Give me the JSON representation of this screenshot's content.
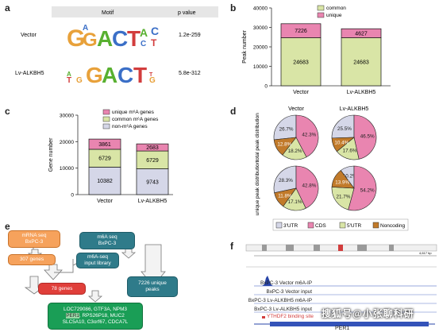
{
  "panels": {
    "a": "a",
    "b": "b",
    "c": "c",
    "d": "d",
    "e": "e",
    "f": "f"
  },
  "motif": {
    "header_motif": "Motif",
    "header_pvalue": "p value",
    "rows": [
      {
        "label": "Vector",
        "pvalue": "1.2e-259"
      },
      {
        "label": "Lv-ALKBH5",
        "pvalue": "5.8e-312"
      }
    ]
  },
  "chart_data": [
    {
      "type": "bar",
      "panel": "b",
      "ylabel": "Peak number",
      "ylim": [
        0,
        40000
      ],
      "yticks": [
        0,
        10000,
        20000,
        30000,
        40000
      ],
      "categories": [
        "Vector",
        "Lv-ALKBH5"
      ],
      "legend_position": "top-right",
      "series": [
        {
          "name": "common",
          "color": "#d9e5a6",
          "values": [
            24683,
            24683
          ]
        },
        {
          "name": "unique",
          "color": "#e985b0",
          "values": [
            7226,
            4627
          ]
        }
      ]
    },
    {
      "type": "bar",
      "panel": "c",
      "ylabel": "Gene number",
      "ylim": [
        0,
        30000
      ],
      "yticks": [
        0,
        10000,
        20000,
        30000
      ],
      "categories": [
        "Vector",
        "Lv-ALKBH5"
      ],
      "legend_position": "top-right",
      "series": [
        {
          "name": "non-m⁶A genes",
          "color": "#d5d7e8",
          "values": [
            10382,
            9743
          ]
        },
        {
          "name": "common m⁶A genes",
          "color": "#d9e5a6",
          "values": [
            6729,
            6729
          ]
        },
        {
          "name": "unique m⁶A genes",
          "color": "#e985b0",
          "values": [
            3861,
            2683
          ]
        }
      ]
    },
    {
      "type": "pie",
      "panel": "d",
      "row_labels": [
        "total peak distribution",
        "unique peak distribution"
      ],
      "col_labels": [
        "Vector",
        "Lv-ALKBH5"
      ],
      "categories": [
        "3'UTR",
        "CDS",
        "5'UTR",
        "Noncoding"
      ],
      "colors": [
        "#d5d7e8",
        "#e985b0",
        "#d9e5a6",
        "#c17a2a"
      ],
      "pies": [
        {
          "row": 0,
          "col": 0,
          "values": [
            26.7,
            42.3,
            18.2,
            12.8
          ],
          "labels": [
            "26.7%",
            "42.3%",
            "18.2%",
            "12.8%"
          ]
        },
        {
          "row": 0,
          "col": 1,
          "values": [
            25.5,
            46.5,
            17.6,
            10.4
          ],
          "labels": [
            "25.5%",
            "46.5%",
            "17.6%",
            "10.4%"
          ]
        },
        {
          "row": 1,
          "col": 0,
          "values": [
            28.3,
            42.8,
            17.1,
            11.8
          ],
          "labels": [
            "28.3%",
            "42.8%",
            "17.1%",
            "11.8%"
          ]
        },
        {
          "row": 1,
          "col": 1,
          "values": [
            10.2,
            54.2,
            21.7,
            13.9
          ],
          "labels": [
            "10.2%",
            "54.2%",
            "21.7%",
            "13.9%"
          ]
        }
      ]
    }
  ],
  "flow": {
    "mrna_seq": "mRNA seq\nBxPC-3",
    "m6a_seq": "m6A seq\nBxPC-3",
    "genes_307": "307 genes",
    "m6a_input": "m6A-seq\ninput library",
    "genes_78": "78 genes",
    "unique_peaks": "7226 unique\npeaks",
    "final_genes_1": "LOC729086, GTF3A, NPM3",
    "final_genes_2_a": "PER1",
    "final_genes_2_b": ", RPS26P18, MUC2",
    "final_genes_3": "SLC5A10, C3orf67, CDCA7L"
  },
  "track": {
    "tracks": [
      "BxPC-3 Vector m6A-IP",
      "BxPC-3 Vector input",
      "BxPC-3 Lv-ALKBH5 m6A-IP",
      "BxPC-3 Lv-ALKBH5 input"
    ],
    "binding_site": "YTHDF2 binding site",
    "gene": "PER1",
    "scale_label": "4,617 bp"
  },
  "watermark": "搜狐号@小张聊科研"
}
